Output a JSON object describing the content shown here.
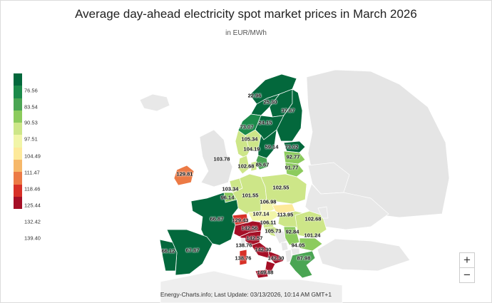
{
  "header": {
    "title": "Average day-ahead electricity spot market prices in March 2026",
    "subtitle": "in EUR/MWh"
  },
  "legend": {
    "ticks": [
      "76.56",
      "83.54",
      "90.53",
      "97.51",
      "104.49",
      "111.47",
      "118.46",
      "125.44",
      "132.42",
      "139.40"
    ],
    "colors": [
      "#03683c",
      "#1b8a4a",
      "#4aa553",
      "#8ccb5d",
      "#cde688",
      "#f1f5a8",
      "#fde99a",
      "#f6b86a",
      "#ec7a45",
      "#d73027",
      "#a50f26"
    ]
  },
  "map": {
    "price_labels": [
      {
        "area": "NO4",
        "value": "22.96"
      },
      {
        "area": "NO3",
        "value": "25.30"
      },
      {
        "area": "FI",
        "value": "37.67"
      },
      {
        "area": "NO5",
        "value": "73.07"
      },
      {
        "area": "SE2",
        "value": "24.15"
      },
      {
        "area": "NO1",
        "value": "105.34"
      },
      {
        "area": "NO2",
        "value": "104.19"
      },
      {
        "area": "SE3",
        "value": "59.14"
      },
      {
        "area": "EE",
        "value": "73.02"
      },
      {
        "area": "LV",
        "value": "92.77"
      },
      {
        "area": "GB",
        "value": "103.78"
      },
      {
        "area": "DK1",
        "value": "102.68"
      },
      {
        "area": "SE4",
        "value": "85.67"
      },
      {
        "area": "LT",
        "value": "91.77"
      },
      {
        "area": "IE",
        "value": "129.81"
      },
      {
        "area": "NL",
        "value": "103.34"
      },
      {
        "area": "DE",
        "value": "101.55"
      },
      {
        "area": "PL",
        "value": "102.55"
      },
      {
        "area": "BE",
        "value": "96.14"
      },
      {
        "area": "CZ",
        "value": "106.98"
      },
      {
        "area": "FR",
        "value": "66.87"
      },
      {
        "area": "AT",
        "value": "107.14"
      },
      {
        "area": "SK",
        "value": "113.95"
      },
      {
        "area": "CH",
        "value": "129.43"
      },
      {
        "area": "IT-North",
        "value": "142.56"
      },
      {
        "area": "SI",
        "value": "106.11"
      },
      {
        "area": "HU",
        "value": "102.68"
      },
      {
        "area": "HR",
        "value": "105.73"
      },
      {
        "area": "RS",
        "value": "92.84"
      },
      {
        "area": "RO",
        "value": "101.24"
      },
      {
        "area": "IT-CNorth",
        "value": "142.57"
      },
      {
        "area": "IT-Sardinia",
        "value": "138.76"
      },
      {
        "area": "IT-CSouth",
        "value": "142.30"
      },
      {
        "area": "BG",
        "value": "94.05"
      },
      {
        "area": "PT",
        "value": "66.12"
      },
      {
        "area": "ES",
        "value": "67.87"
      },
      {
        "area": "IT-South",
        "value": "142.30"
      },
      {
        "area": "IT-Sicily",
        "value": "138.76"
      },
      {
        "area": "IT-Calabria",
        "value": "149.88"
      },
      {
        "area": "GR",
        "value": "87.98"
      }
    ]
  },
  "controls": {
    "zoom_in": "+",
    "zoom_out": "−"
  },
  "footer": {
    "credit": "Energy-Charts.info; Last Update: 03/13/2026, 10:14 AM GMT+1"
  }
}
